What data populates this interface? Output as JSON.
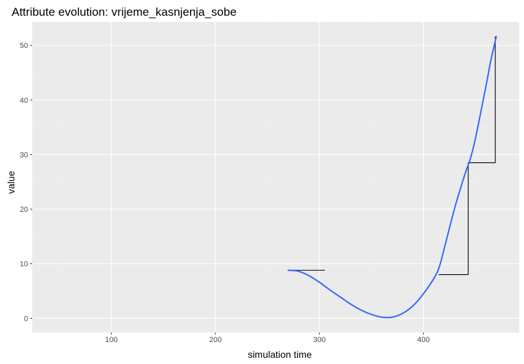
{
  "chart_data": {
    "type": "line",
    "title": "Attribute evolution: vrijeme_kasnjenja_sobe",
    "xlabel": "simulation time",
    "ylabel": "value",
    "xlim": [
      24,
      492
    ],
    "ylim": [
      -2.6,
      54.3
    ],
    "x_ticks": [
      100,
      200,
      300,
      400
    ],
    "x_minor_ticks": [
      50,
      150,
      250,
      350,
      450
    ],
    "y_ticks": [
      0,
      10,
      20,
      30,
      40,
      50
    ],
    "y_minor_ticks": [
      5,
      15,
      25,
      35,
      45
    ],
    "grid": true,
    "legend": "none",
    "series": [
      {
        "kind": "smooth",
        "color": "#3366ff",
        "points": [
          {
            "x": 270,
            "y": 8.8
          },
          {
            "x": 280,
            "y": 8.6
          },
          {
            "x": 290,
            "y": 7.8
          },
          {
            "x": 300,
            "y": 6.6
          },
          {
            "x": 310,
            "y": 5.2
          },
          {
            "x": 320,
            "y": 3.9
          },
          {
            "x": 330,
            "y": 2.6
          },
          {
            "x": 340,
            "y": 1.5
          },
          {
            "x": 350,
            "y": 0.7
          },
          {
            "x": 360,
            "y": 0.2
          },
          {
            "x": 370,
            "y": 0.2
          },
          {
            "x": 380,
            "y": 0.9
          },
          {
            "x": 390,
            "y": 2.3
          },
          {
            "x": 400,
            "y": 4.5
          },
          {
            "x": 410,
            "y": 7.3
          },
          {
            "x": 415,
            "y": 9.3
          },
          {
            "x": 420,
            "y": 12.8
          },
          {
            "x": 430,
            "y": 20.2
          },
          {
            "x": 440,
            "y": 26.5
          },
          {
            "x": 445,
            "y": 29.2
          },
          {
            "x": 450,
            "y": 33.0
          },
          {
            "x": 460,
            "y": 42.5
          },
          {
            "x": 465,
            "y": 47.5
          },
          {
            "x": 470,
            "y": 51.6
          }
        ]
      },
      {
        "kind": "step",
        "color": "#000000",
        "points": [
          {
            "x": 270,
            "y": 8.8
          },
          {
            "x": 305,
            "y": 8.8
          }
        ]
      },
      {
        "kind": "step",
        "color": "#000000",
        "points": [
          {
            "x": 415,
            "y": 8.0
          },
          {
            "x": 443,
            "y": 8.0
          },
          {
            "x": 443,
            "y": 28.5
          },
          {
            "x": 469,
            "y": 28.5
          },
          {
            "x": 469,
            "y": 51.6
          }
        ]
      }
    ]
  }
}
